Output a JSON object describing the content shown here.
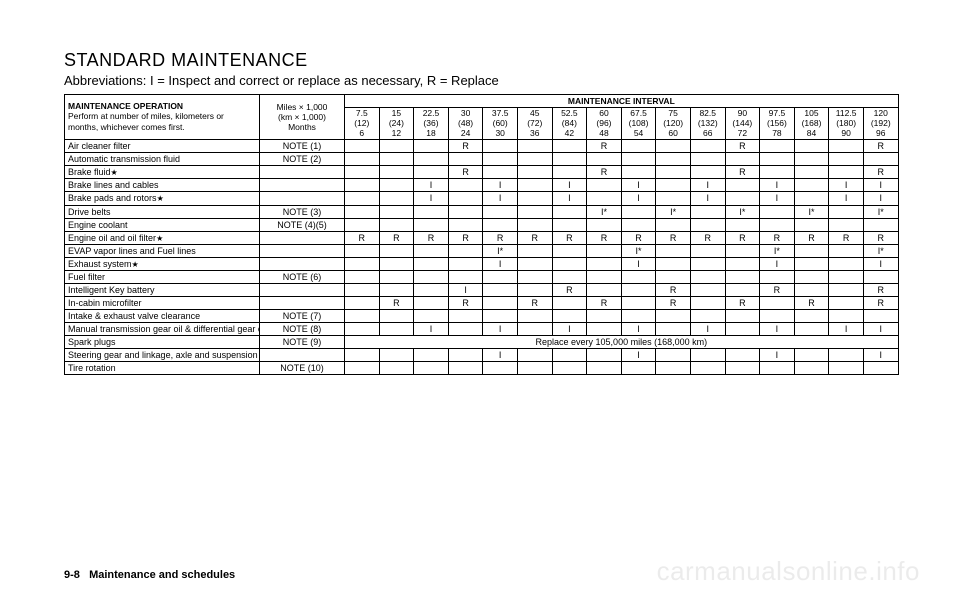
{
  "title": "STANDARD MAINTENANCE",
  "subtitle": "Abbreviations: I = Inspect and correct or replace as necessary, R = Replace",
  "header": {
    "operation_title": "MAINTENANCE OPERATION",
    "operation_sub": "Perform at number of miles, kilometers or months, whichever comes first.",
    "miles_lines": [
      "Miles × 1,000",
      "(km × 1,000)",
      "Months"
    ],
    "interval_title": "MAINTENANCE INTERVAL",
    "intervals": [
      {
        "mi": "7.5",
        "km": "(12)",
        "mo": "6"
      },
      {
        "mi": "15",
        "km": "(24)",
        "mo": "12"
      },
      {
        "mi": "22.5",
        "km": "(36)",
        "mo": "18"
      },
      {
        "mi": "30",
        "km": "(48)",
        "mo": "24"
      },
      {
        "mi": "37.5",
        "km": "(60)",
        "mo": "30"
      },
      {
        "mi": "45",
        "km": "(72)",
        "mo": "36"
      },
      {
        "mi": "52.5",
        "km": "(84)",
        "mo": "42"
      },
      {
        "mi": "60",
        "km": "(96)",
        "mo": "48"
      },
      {
        "mi": "67.5",
        "km": "(108)",
        "mo": "54"
      },
      {
        "mi": "75",
        "km": "(120)",
        "mo": "60"
      },
      {
        "mi": "82.5",
        "km": "(132)",
        "mo": "66"
      },
      {
        "mi": "90",
        "km": "(144)",
        "mo": "72"
      },
      {
        "mi": "97.5",
        "km": "(156)",
        "mo": "78"
      },
      {
        "mi": "105",
        "km": "(168)",
        "mo": "84"
      },
      {
        "mi": "112.5",
        "km": "(180)",
        "mo": "90"
      },
      {
        "mi": "120",
        "km": "(192)",
        "mo": "96"
      }
    ]
  },
  "rows": [
    {
      "label": "Air cleaner filter",
      "star": false,
      "note": "NOTE (1)",
      "cells": [
        "",
        "",
        "",
        "R",
        "",
        "",
        "",
        "R",
        "",
        "",
        "",
        "R",
        "",
        "",
        "",
        "R"
      ]
    },
    {
      "label": "Automatic transmission fluid",
      "star": false,
      "note": "NOTE (2)",
      "cells": [
        "",
        "",
        "",
        "",
        "",
        "",
        "",
        "",
        "",
        "",
        "",
        "",
        "",
        "",
        "",
        ""
      ]
    },
    {
      "label": "Brake fluid",
      "star": true,
      "note": "",
      "cells": [
        "",
        "",
        "",
        "R",
        "",
        "",
        "",
        "R",
        "",
        "",
        "",
        "R",
        "",
        "",
        "",
        "R"
      ]
    },
    {
      "label": "Brake lines and cables",
      "star": false,
      "note": "",
      "cells": [
        "",
        "",
        "I",
        "",
        "I",
        "",
        "I",
        "",
        "I",
        "",
        "I",
        "",
        "I",
        "",
        "I",
        "I"
      ]
    },
    {
      "label": "Brake pads and rotors",
      "star": true,
      "note": "",
      "cells": [
        "",
        "",
        "I",
        "",
        "I",
        "",
        "I",
        "",
        "I",
        "",
        "I",
        "",
        "I",
        "",
        "I",
        "I"
      ]
    },
    {
      "label": "Drive belts",
      "star": false,
      "note": "NOTE (3)",
      "cells": [
        "",
        "",
        "",
        "",
        "",
        "",
        "",
        "I*",
        "",
        "I*",
        "",
        "I*",
        "",
        "I*",
        "",
        "I*"
      ]
    },
    {
      "label": "Engine coolant",
      "star": false,
      "note": "NOTE (4)(5)",
      "cells": [
        "",
        "",
        "",
        "",
        "",
        "",
        "",
        "",
        "",
        "",
        "",
        "",
        "",
        "",
        "",
        ""
      ]
    },
    {
      "label": "Engine oil and oil filter",
      "star": true,
      "note": "",
      "cells": [
        "R",
        "R",
        "R",
        "R",
        "R",
        "R",
        "R",
        "R",
        "R",
        "R",
        "R",
        "R",
        "R",
        "R",
        "R",
        "R"
      ]
    },
    {
      "label": "EVAP vapor lines and Fuel lines",
      "star": false,
      "note": "",
      "cells": [
        "",
        "",
        "",
        "",
        "I*",
        "",
        "",
        "",
        "I*",
        "",
        "",
        "",
        "I*",
        "",
        "",
        "I*"
      ]
    },
    {
      "label": "Exhaust system",
      "star": true,
      "note": "",
      "cells": [
        "",
        "",
        "",
        "",
        "I",
        "",
        "",
        "",
        "I",
        "",
        "",
        "",
        "I",
        "",
        "",
        "I"
      ]
    },
    {
      "label": "Fuel filter",
      "star": false,
      "note": "NOTE (6)",
      "cells": [
        "",
        "",
        "",
        "",
        "",
        "",
        "",
        "",
        "",
        "",
        "",
        "",
        "",
        "",
        "",
        ""
      ]
    },
    {
      "label": "Intelligent Key battery",
      "star": false,
      "note": "",
      "cells": [
        "",
        "",
        "",
        "I",
        "",
        "",
        "R",
        "",
        "",
        "R",
        "",
        "",
        "R",
        "",
        "",
        "R"
      ]
    },
    {
      "label": "In-cabin microfilter",
      "star": false,
      "note": "",
      "cells": [
        "",
        "R",
        "",
        "R",
        "",
        "R",
        "",
        "R",
        "",
        "R",
        "",
        "R",
        "",
        "R",
        "",
        "R"
      ]
    },
    {
      "label": "Intake & exhaust valve clearance",
      "star": false,
      "note": "NOTE (7)",
      "cells": [
        "",
        "",
        "",
        "",
        "",
        "",
        "",
        "",
        "",
        "",
        "",
        "",
        "",
        "",
        "",
        ""
      ]
    },
    {
      "label": "Manual transmission gear oil & differential gear oil",
      "star": false,
      "note": "NOTE (8)",
      "cells": [
        "",
        "",
        "I",
        "",
        "I",
        "",
        "I",
        "",
        "I",
        "",
        "I",
        "",
        "I",
        "",
        "I",
        "I"
      ]
    },
    {
      "label": "Spark plugs",
      "star": false,
      "note": "NOTE (9)",
      "span": "Replace every 105,000 miles (168,000 km)"
    },
    {
      "label": "Steering gear and linkage, axle and suspension parts",
      "star": true,
      "note": "",
      "cells": [
        "",
        "",
        "",
        "",
        "I",
        "",
        "",
        "",
        "I",
        "",
        "",
        "",
        "I",
        "",
        "",
        "I"
      ]
    },
    {
      "label": "Tire rotation",
      "star": false,
      "note": "NOTE (10)",
      "cells": [
        "",
        "",
        "",
        "",
        "",
        "",
        "",
        "",
        "",
        "",
        "",
        "",
        "",
        "",
        "",
        ""
      ]
    }
  ],
  "footer_page": "9-8",
  "footer_section": "Maintenance and schedules",
  "watermark": "carmanualsonline.info"
}
